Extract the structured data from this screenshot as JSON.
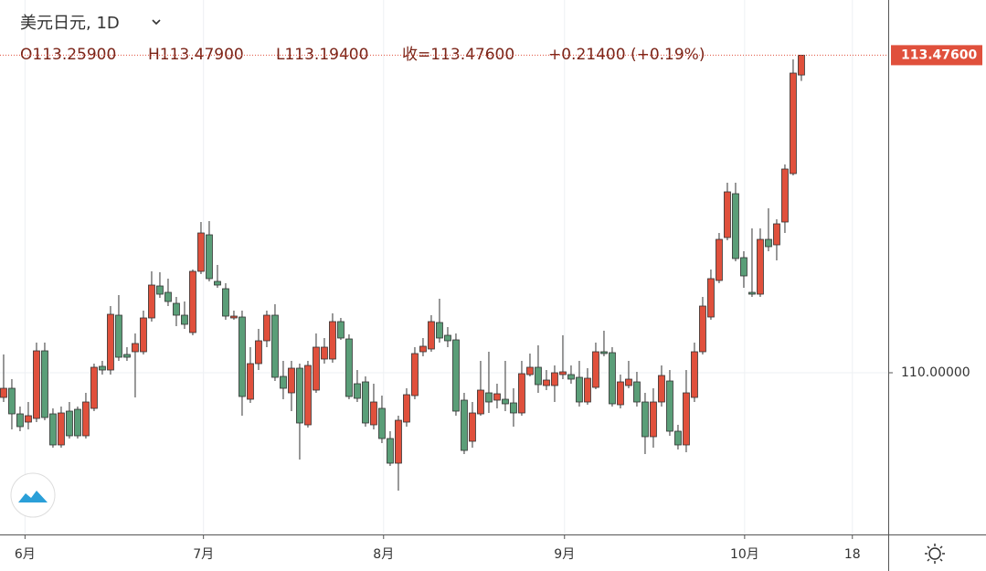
{
  "chart_data": {
    "type": "candlestick",
    "title": "美元日元, 1D",
    "ohlc_labels": [
      "O113.25900",
      "H113.47900",
      "L113.19400",
      "收=113.47600",
      "+0.21400 (+0.19%)"
    ],
    "last_price": {
      "value": 113.476,
      "label": "113.47600"
    },
    "up_color": "#e0503c",
    "down_color": "#5a9e78",
    "ylim": [
      108.23,
      114.08
    ],
    "yticks": [
      {
        "value": 110,
        "label": "110.00000"
      }
    ],
    "xlim": [
      -0.44,
      107.56
    ],
    "xticks": [
      {
        "value": 2.6,
        "label": "6月"
      },
      {
        "value": 24.3,
        "label": "7月"
      },
      {
        "value": 46.2,
        "label": "8月"
      },
      {
        "value": 68.2,
        "label": "9月"
      },
      {
        "value": 90.1,
        "label": "10月"
      },
      {
        "value": 103.2,
        "label": "18"
      }
    ],
    "grid": true,
    "open": [
      109.73,
      109.83,
      109.55,
      109.46,
      109.5,
      110.24,
      109.55,
      109.21,
      109.58,
      109.6,
      109.31,
      109.61,
      110.07,
      110.03,
      110.63,
      110.2,
      110.23,
      110.23,
      110.6,
      110.95,
      110.88,
      110.76,
      110.63,
      110.44,
      111.11,
      111.51,
      111.0,
      110.92,
      110.6,
      110.61,
      109.71,
      110.1,
      110.35,
      110.63,
      109.96,
      109.78,
      110.05,
      109.43,
      109.81,
      110.15,
      110.15,
      110.56,
      110.37,
      109.88,
      109.9,
      109.43,
      109.61,
      109.28,
      109.01,
      109.46,
      109.75,
      110.23,
      110.26,
      110.55,
      110.41,
      110.36,
      109.7,
      109.25,
      109.55,
      109.78,
      109.7,
      109.71,
      109.67,
      109.56,
      109.98,
      110.06,
      109.86,
      109.86,
      109.98,
      109.98,
      109.95,
      109.68,
      109.84,
      110.23,
      110.22,
      109.65,
      109.86,
      109.9,
      109.68,
      109.3,
      109.68,
      109.91,
      109.36,
      109.21,
      109.73,
      110.23,
      110.61,
      111.01,
      111.48,
      111.96,
      111.26,
      110.88,
      110.86,
      111.46,
      111.4,
      111.65,
      112.18,
      113.259
    ],
    "high": [
      110.2,
      109.93,
      109.63,
      109.68,
      110.33,
      110.33,
      109.61,
      109.63,
      109.68,
      109.63,
      109.78,
      110.1,
      110.13,
      110.73,
      110.85,
      110.28,
      110.43,
      110.68,
      111.11,
      111.1,
      111.03,
      110.83,
      110.78,
      111.13,
      111.65,
      111.66,
      111.18,
      110.98,
      110.68,
      110.68,
      110.28,
      110.48,
      110.68,
      110.75,
      110.13,
      110.13,
      110.1,
      110.13,
      110.43,
      110.38,
      110.65,
      110.6,
      110.42,
      110.03,
      109.96,
      109.88,
      109.75,
      109.36,
      109.53,
      109.83,
      110.28,
      110.38,
      110.63,
      110.81,
      110.5,
      110.43,
      109.78,
      109.68,
      110.13,
      110.23,
      109.88,
      110.13,
      109.83,
      110.13,
      110.21,
      110.3,
      110.03,
      110.08,
      110.41,
      110.08,
      110.13,
      110.05,
      110.33,
      110.46,
      110.28,
      109.98,
      110.13,
      110.01,
      109.78,
      109.83,
      110.08,
      110.03,
      109.43,
      110.03,
      110.33,
      110.83,
      111.13,
      111.53,
      112.08,
      112.08,
      111.33,
      111.58,
      111.58,
      111.8,
      111.68,
      112.28,
      113.43,
      113.479
    ],
    "low": [
      109.68,
      109.38,
      109.36,
      109.38,
      109.46,
      109.48,
      109.18,
      109.18,
      109.28,
      109.28,
      109.28,
      109.58,
      109.98,
      109.98,
      110.13,
      110.13,
      109.73,
      110.2,
      110.56,
      110.82,
      110.73,
      110.51,
      110.48,
      110.41,
      111.08,
      111.0,
      110.93,
      110.58,
      110.58,
      109.53,
      109.67,
      110.03,
      110.28,
      109.91,
      109.71,
      109.58,
      109.05,
      109.4,
      109.78,
      110.1,
      110.11,
      110.36,
      109.71,
      109.68,
      109.41,
      109.38,
      109.23,
      108.98,
      108.71,
      109.41,
      109.71,
      110.18,
      110.23,
      110.33,
      110.28,
      109.53,
      109.11,
      109.18,
      109.53,
      109.56,
      109.61,
      109.58,
      109.41,
      109.53,
      109.96,
      109.78,
      109.81,
      109.68,
      109.93,
      109.88,
      109.63,
      109.65,
      109.82,
      110.18,
      109.63,
      109.61,
      109.83,
      109.63,
      109.11,
      109.18,
      109.63,
      109.31,
      109.16,
      109.13,
      109.68,
      110.2,
      110.58,
      110.98,
      111.45,
      111.22,
      110.93,
      110.83,
      110.83,
      111.33,
      111.23,
      111.53,
      112.16,
      113.194
    ],
    "close": [
      109.83,
      109.55,
      109.41,
      109.53,
      110.24,
      109.51,
      109.21,
      109.56,
      109.31,
      109.31,
      109.68,
      110.06,
      110.03,
      110.64,
      110.17,
      110.17,
      110.32,
      110.6,
      110.96,
      110.86,
      110.78,
      110.63,
      110.53,
      111.11,
      111.53,
      111.03,
      110.96,
      110.62,
      110.62,
      109.74,
      110.1,
      110.35,
      110.63,
      109.95,
      109.83,
      110.05,
      109.45,
      110.08,
      110.28,
      110.28,
      110.56,
      110.38,
      109.74,
      109.72,
      109.45,
      109.68,
      109.28,
      109.01,
      109.48,
      109.76,
      110.21,
      110.29,
      110.56,
      110.38,
      110.35,
      109.58,
      109.15,
      109.56,
      109.81,
      109.68,
      109.77,
      109.66,
      109.56,
      109.99,
      110.06,
      109.87,
      109.92,
      110.0,
      110.01,
      109.93,
      109.68,
      109.94,
      110.23,
      110.21,
      109.66,
      109.9,
      109.93,
      109.68,
      109.3,
      109.68,
      109.97,
      109.36,
      109.21,
      109.78,
      110.23,
      110.73,
      111.03,
      111.46,
      111.98,
      111.25,
      111.06,
      110.86,
      111.46,
      111.38,
      111.63,
      112.23,
      113.28,
      113.476
    ]
  }
}
